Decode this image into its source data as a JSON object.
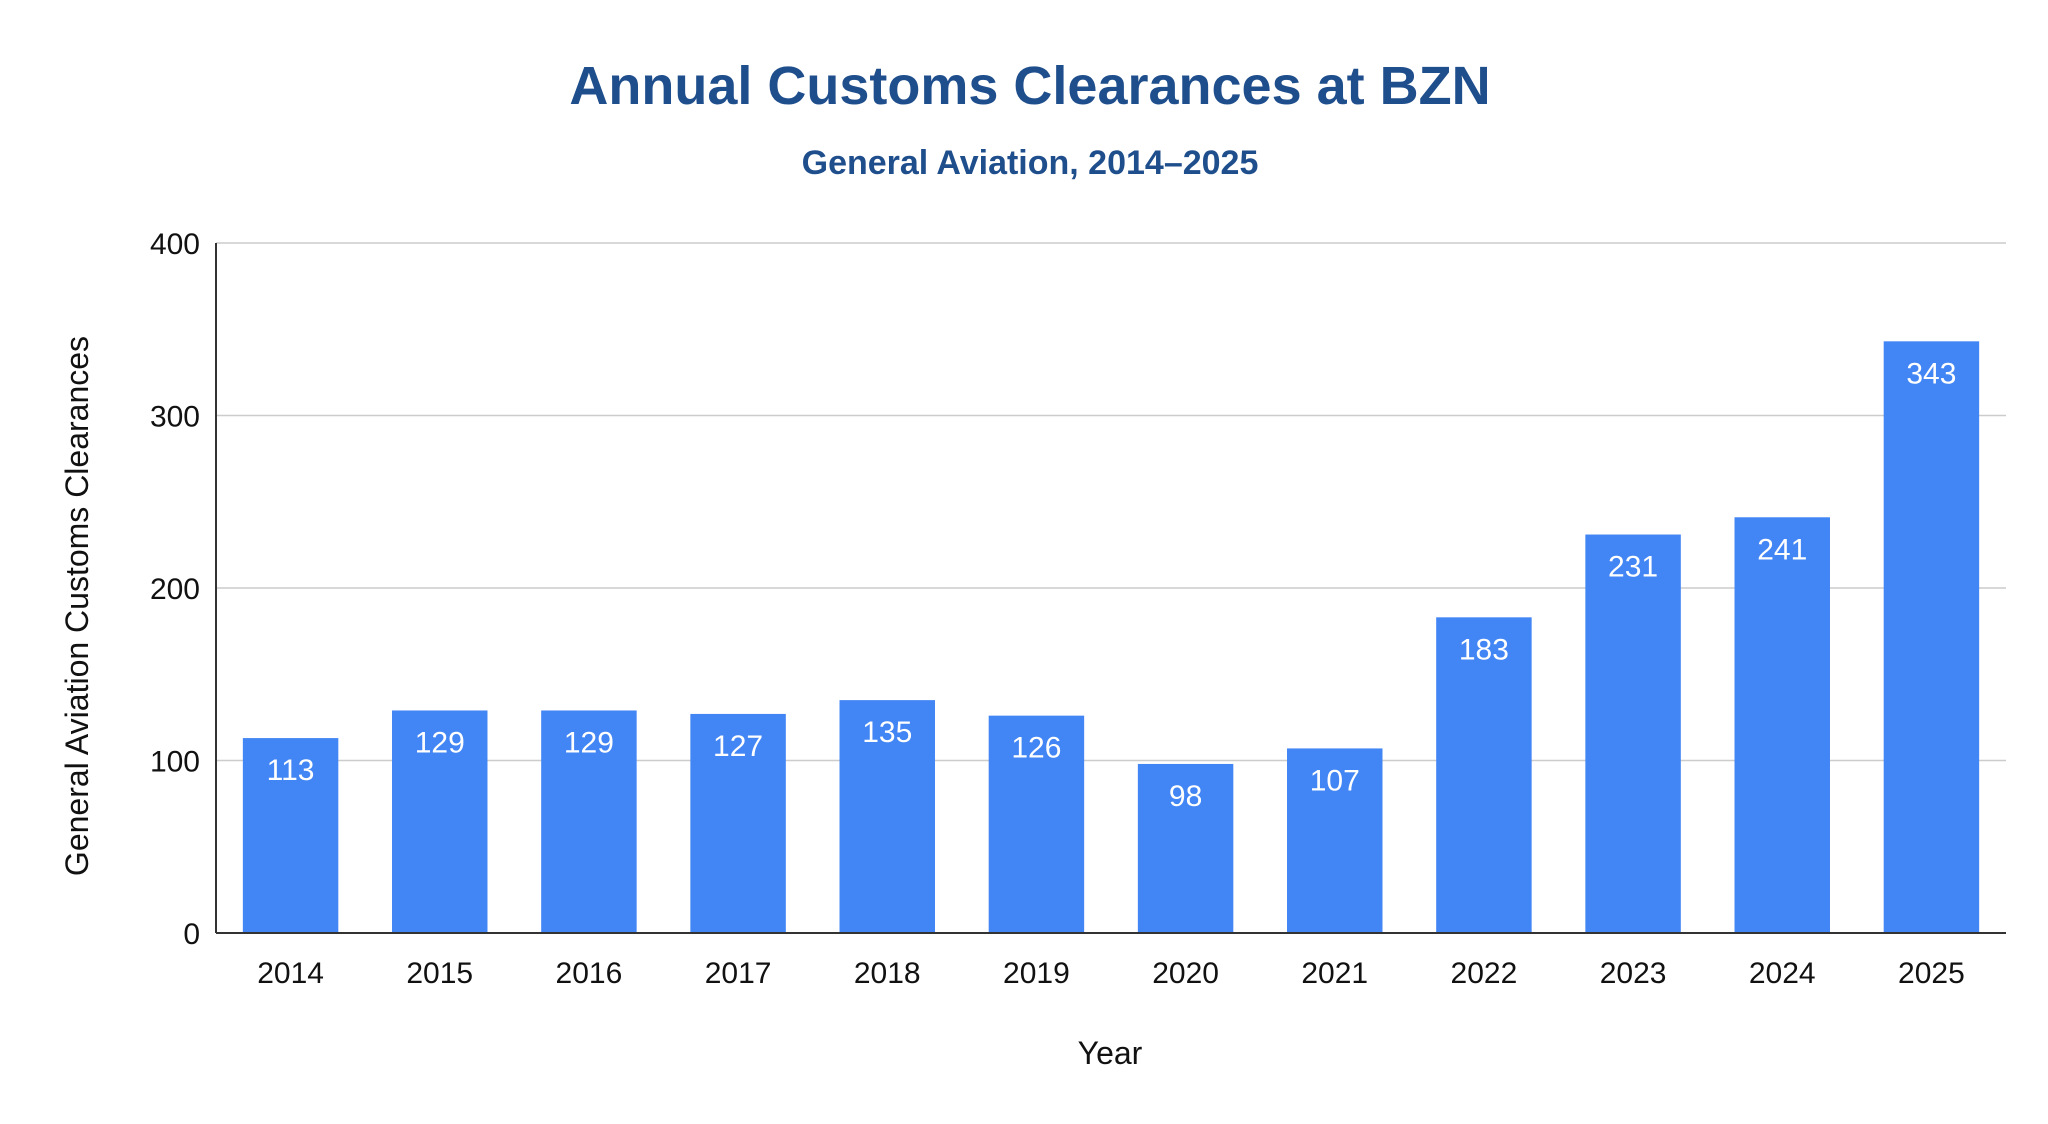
{
  "chart_data": {
    "type": "bar",
    "title": "Annual Customs Clearances at BZN",
    "subtitle": "General Aviation, 2014–2025",
    "xlabel": "Year",
    "ylabel": "General Aviation Customs Clearances",
    "categories": [
      "2014",
      "2015",
      "2016",
      "2017",
      "2018",
      "2019",
      "2020",
      "2021",
      "2022",
      "2023",
      "2024",
      "2025"
    ],
    "values": [
      113,
      129,
      129,
      127,
      135,
      126,
      98,
      107,
      183,
      231,
      241,
      343
    ],
    "ylim": [
      0,
      400
    ],
    "yticks": [
      0,
      100,
      200,
      300,
      400
    ],
    "grid": true,
    "data_labels": true,
    "colors": {
      "bar": "#4285f4",
      "title": "#1f4e8c",
      "label": "#ffffff",
      "grid": "#cccccc",
      "axis": "#333333"
    }
  }
}
